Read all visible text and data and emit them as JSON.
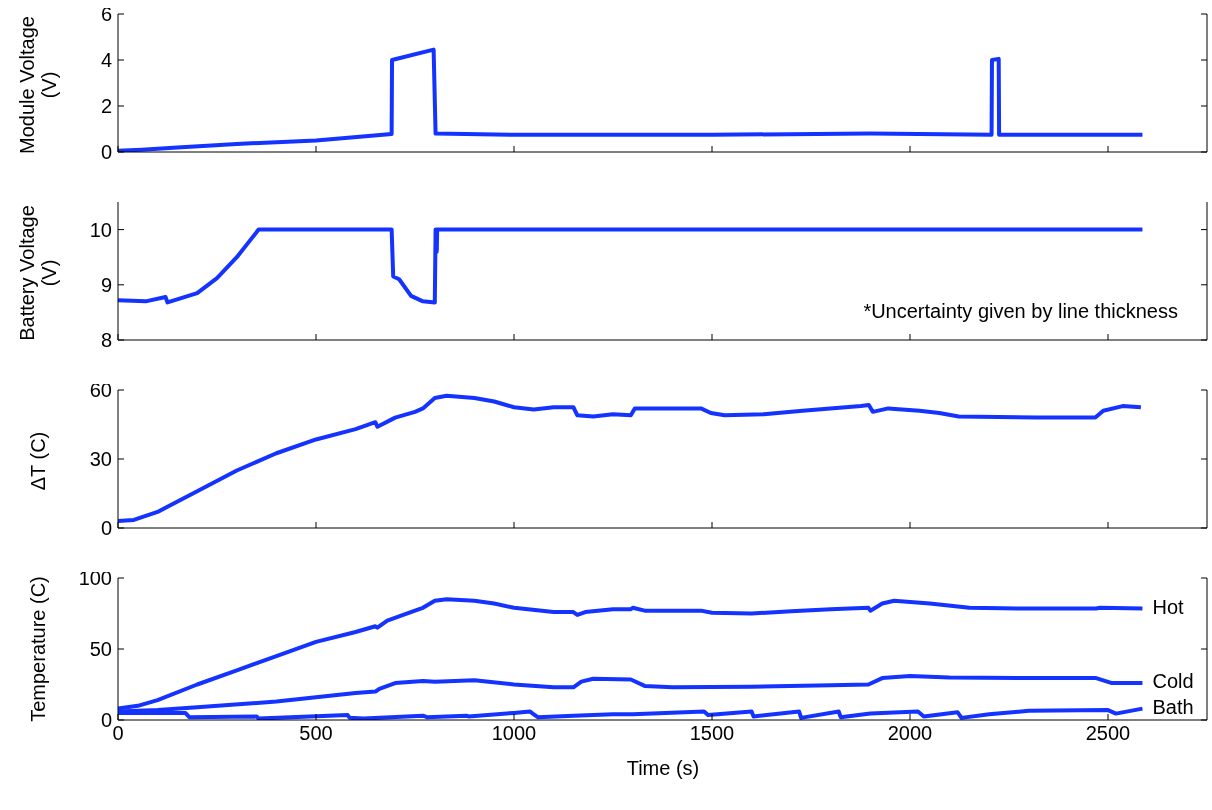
{
  "chart_data": [
    {
      "type": "line",
      "ylabel": "Module Voltage (V)",
      "xlim": [
        0,
        2750
      ],
      "xticks": [
        0,
        500,
        1000,
        1500,
        2000,
        2500
      ],
      "ylim": [
        0,
        6
      ],
      "yticks": [
        0,
        2,
        4,
        6
      ],
      "tick_labels": "y",
      "marker": "none",
      "line_style": "solid",
      "series": [
        {
          "color": "#1433ff",
          "x": [
            0,
            60,
            150,
            300,
            500,
            691,
            692,
            797,
            802,
            1000,
            1500,
            1900,
            2206,
            2207,
            2224,
            2225,
            2587
          ],
          "values": [
            0.05,
            0.1,
            0.2,
            0.35,
            0.5,
            0.78,
            4.0,
            4.45,
            0.8,
            0.75,
            0.75,
            0.8,
            0.75,
            4.0,
            4.05,
            0.75,
            0.75
          ]
        }
      ]
    },
    {
      "type": "line",
      "ylabel": "Battery Voltage (V)",
      "xlim": [
        0,
        2750
      ],
      "xticks": [
        0,
        500,
        1000,
        1500,
        2000,
        2500
      ],
      "ylim": [
        8,
        10.5
      ],
      "yticks": [
        8,
        9,
        10
      ],
      "tick_labels": "y",
      "marker": "none",
      "line_style": "solid",
      "annotations": [
        "*Uncertainty given by line thickness"
      ],
      "series": [
        {
          "color": "#1433ff",
          "x": [
            0,
            70,
            120,
            125,
            200,
            250,
            300,
            355,
            691,
            695,
            710,
            740,
            770,
            800,
            802,
            805,
            806,
            2587
          ],
          "values": [
            8.72,
            8.7,
            8.78,
            8.68,
            8.85,
            9.12,
            9.5,
            10,
            10,
            9.15,
            9.1,
            8.8,
            8.7,
            8.68,
            10,
            9.6,
            10,
            10
          ]
        }
      ]
    },
    {
      "type": "line",
      "ylabel": "ΔT (C)",
      "xlim": [
        0,
        2750
      ],
      "xticks": [
        0,
        500,
        1000,
        1500,
        2000,
        2500
      ],
      "ylim": [
        0,
        60
      ],
      "yticks": [
        0,
        30,
        60
      ],
      "tick_labels": "y",
      "marker": "none",
      "line_style": "solid",
      "series": [
        {
          "color": "#1433ff",
          "x": [
            0,
            40,
            100,
            200,
            300,
            400,
            500,
            600,
            650,
            655,
            700,
            750,
            770,
            800,
            830,
            900,
            950,
            1000,
            1050,
            1100,
            1150,
            1160,
            1200,
            1250,
            1295,
            1305,
            1472,
            1497,
            1532,
            1631,
            1729,
            1876,
            1896,
            1906,
            1945,
            2024,
            2074,
            2123,
            2320,
            2468,
            2488,
            2537,
            2583
          ],
          "values": [
            3,
            3.5,
            7,
            16,
            25,
            32.5,
            38.5,
            43,
            46,
            44,
            48,
            50.5,
            52,
            56.5,
            57.5,
            56.5,
            55,
            52.5,
            51.5,
            52.5,
            52.5,
            49,
            48.5,
            49.5,
            49,
            52,
            52,
            50,
            49,
            49.5,
            51,
            53,
            53.5,
            50.5,
            52,
            51,
            50,
            48.5,
            48,
            48,
            51,
            53,
            52.5
          ]
        }
      ]
    },
    {
      "type": "line",
      "ylabel": "Temperature (C)",
      "xlabel": "Time (s)",
      "xlim": [
        0,
        2750
      ],
      "xticks": [
        0,
        500,
        1000,
        1500,
        2000,
        2500
      ],
      "ylim": [
        0,
        100
      ],
      "yticks": [
        0,
        50,
        100
      ],
      "marker": "none",
      "line_style": "solid",
      "series": [
        {
          "name": "Hot",
          "color": "#1433ff",
          "x": [
            0,
            50,
            100,
            200,
            300,
            400,
            500,
            600,
            650,
            655,
            680,
            750,
            770,
            800,
            830,
            900,
            950,
            1000,
            1100,
            1150,
            1160,
            1180,
            1250,
            1295,
            1300,
            1330,
            1472,
            1500,
            1600,
            1700,
            1800,
            1895,
            1900,
            1930,
            1960,
            2050,
            2150,
            2300,
            2470,
            2480,
            2587
          ],
          "values": [
            8,
            10,
            14,
            25,
            35,
            45,
            55,
            62,
            66,
            65,
            70,
            77,
            79,
            84,
            85,
            84,
            82,
            79,
            76,
            76,
            74,
            76,
            78,
            78,
            79,
            77,
            77,
            75.5,
            75,
            76.5,
            78,
            79,
            77,
            82,
            84,
            82,
            79,
            78.5,
            78.5,
            79,
            78.5
          ]
        },
        {
          "name": "Cold",
          "color": "#1433ff",
          "x": [
            0,
            100,
            200,
            400,
            500,
            600,
            650,
            660,
            700,
            770,
            800,
            900,
            1000,
            1100,
            1150,
            1170,
            1200,
            1295,
            1330,
            1400,
            1600,
            1800,
            1895,
            1930,
            2000,
            2100,
            2300,
            2470,
            2510,
            2587
          ],
          "values": [
            6,
            7,
            9,
            13,
            16,
            19,
            20,
            22,
            26,
            27.5,
            27,
            28,
            25,
            23,
            23,
            27,
            29,
            28.5,
            24,
            23,
            23.5,
            24.5,
            25,
            29.5,
            31,
            30,
            29.5,
            29.5,
            26,
            26
          ]
        },
        {
          "name": "Bath",
          "color": "#1433ff",
          "x": [
            0,
            170,
            180,
            350,
            355,
            580,
            585,
            620,
            770,
            780,
            880,
            885,
            1000,
            1040,
            1050,
            1060,
            1150,
            1250,
            1300,
            1480,
            1490,
            1600,
            1605,
            1720,
            1725,
            1820,
            1825,
            1900,
            2020,
            2035,
            2120,
            2130,
            2200,
            2300,
            2500,
            2520,
            2587
          ],
          "values": [
            5,
            5,
            2,
            2.5,
            1,
            3.5,
            1.5,
            1,
            3,
            2,
            3,
            2.5,
            5,
            6,
            4,
            2,
            3,
            4,
            4,
            6,
            3.5,
            6,
            2.5,
            6,
            1.5,
            6,
            2,
            4.5,
            6,
            2.5,
            5.5,
            1.5,
            4,
            6.5,
            7,
            4.5,
            8
          ]
        }
      ]
    }
  ]
}
